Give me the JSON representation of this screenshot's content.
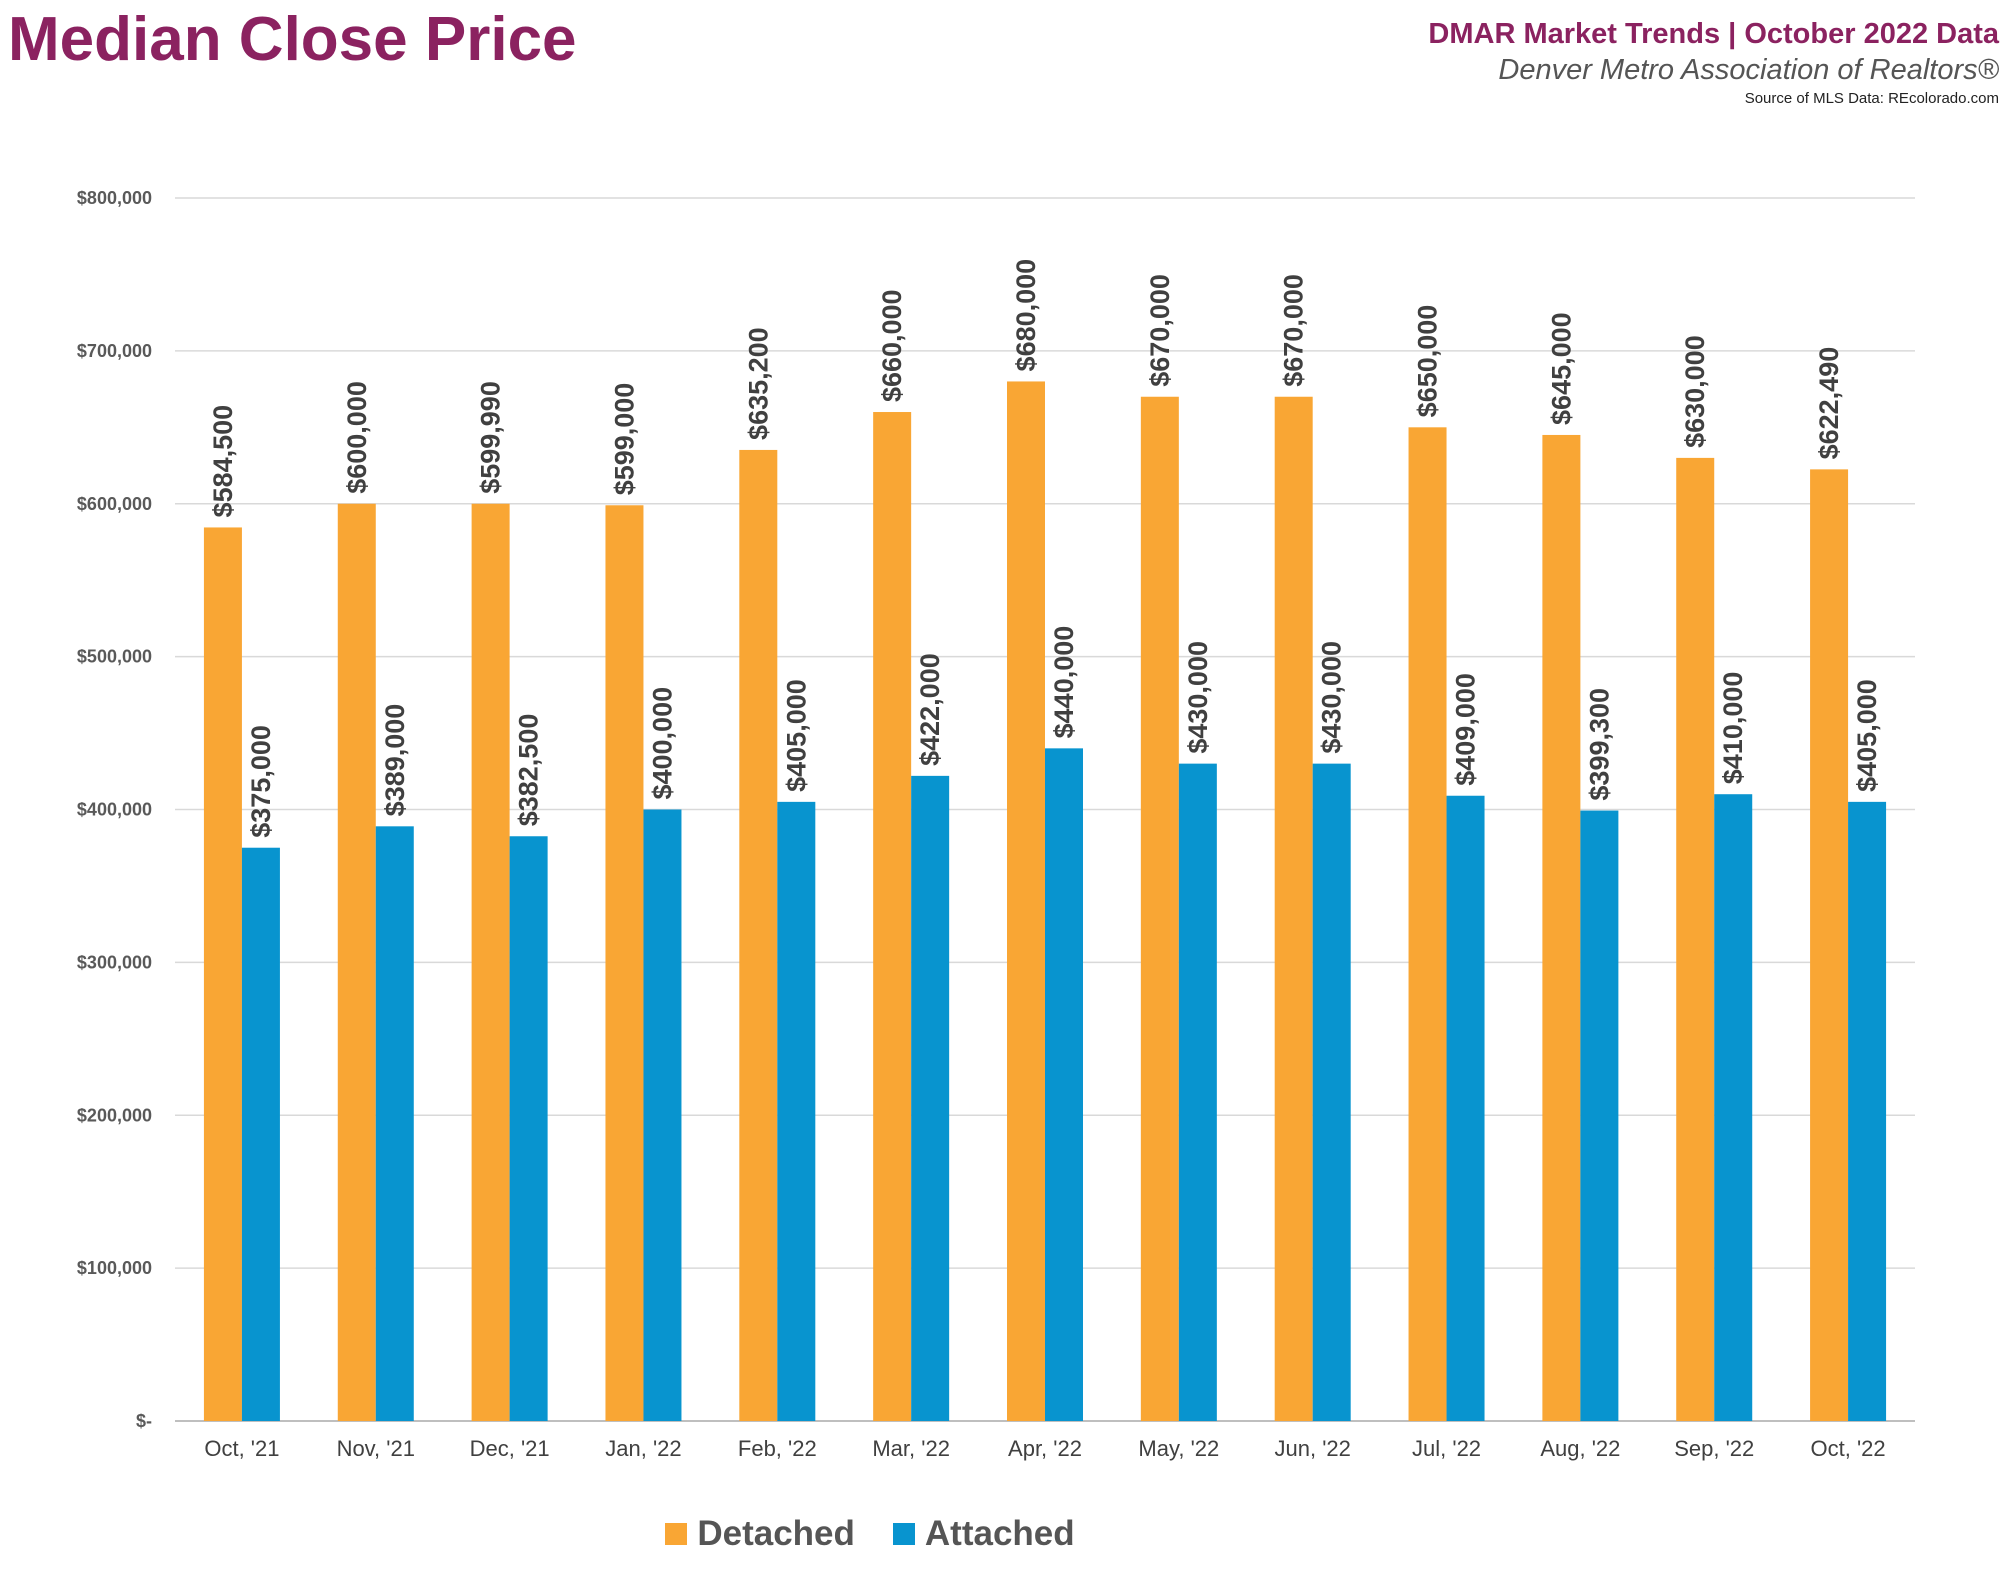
{
  "header": {
    "title": "Median Close Price",
    "report_title": "DMAR Market Trends | October 2022 Data",
    "organization": "Denver Metro Association of Realtors®",
    "source": "Source of MLS Data: REcolorado.com"
  },
  "colors": {
    "detached": "#F9A634",
    "attached": "#0894CF",
    "title": "#8B2260"
  },
  "chart_data": {
    "type": "bar",
    "title": "Median Close Price",
    "categories": [
      "Oct, '21",
      "Nov, '21",
      "Dec, '21",
      "Jan, '22",
      "Feb, '22",
      "Mar, '22",
      "Apr, '22",
      "May, '22",
      "Jun, '22",
      "Jul, '22",
      "Aug, '22",
      "Sep, '22",
      "Oct, '22"
    ],
    "series": [
      {
        "name": "Detached",
        "values": [
          584500,
          600000,
          599990,
          599000,
          635200,
          660000,
          680000,
          670000,
          670000,
          650000,
          645000,
          630000,
          622490
        ],
        "labels": [
          "$584,500",
          "$600,000",
          "$599,990",
          "$599,000",
          "$635,200",
          "$660,000",
          "$680,000",
          "$670,000",
          "$670,000",
          "$650,000",
          "$645,000",
          "$630,000",
          "$622,490"
        ]
      },
      {
        "name": "Attached",
        "values": [
          375000,
          389000,
          382500,
          400000,
          405000,
          422000,
          440000,
          430000,
          430000,
          409000,
          399300,
          410000,
          405000
        ],
        "labels": [
          "$375,000",
          "$389,000",
          "$382,500",
          "$400,000",
          "$405,000",
          "$422,000",
          "$440,000",
          "$430,000",
          "$430,000",
          "$409,000",
          "$399,300",
          "$410,000",
          "$405,000"
        ]
      }
    ],
    "ylim": [
      0,
      800000
    ],
    "yticks": [
      0,
      100000,
      200000,
      300000,
      400000,
      500000,
      600000,
      700000,
      800000
    ],
    "ytick_labels": [
      "$-",
      "$100,000",
      "$200,000",
      "$300,000",
      "$400,000",
      "$500,000",
      "$600,000",
      "$700,000",
      "$800,000"
    ],
    "grid": true,
    "legend_position": "bottom-center"
  }
}
